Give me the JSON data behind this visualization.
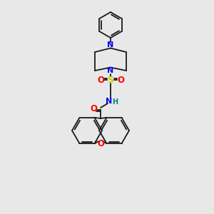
{
  "bg_color": "#e8e8e8",
  "atom_colors": {
    "N": "#0000ff",
    "O": "#ff0000",
    "S": "#cccc00",
    "H": "#008080",
    "C": "#000000"
  },
  "bond_color": "#1a1a1a",
  "figsize": [
    3.0,
    3.0
  ],
  "dpi": 100,
  "lw": 1.3
}
